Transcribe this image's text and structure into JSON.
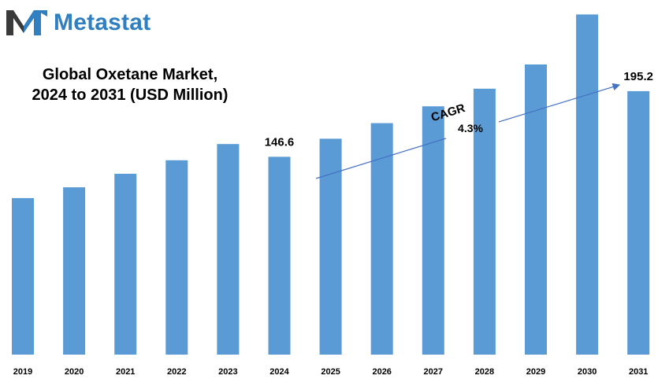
{
  "brand": {
    "name": "Metastat",
    "color": "#2f7fc1",
    "icon": "metastat-m-logo-icon"
  },
  "title_line1": "Global Oxetane Market,",
  "title_line2": "2024 to 2031 (USD Million)",
  "cagr": {
    "label": "CAGR",
    "value": "4.3%"
  },
  "chart_data": {
    "type": "bar",
    "title": "Global Oxetane Market, 2024 to 2031 (USD Million)",
    "categories": [
      "2019",
      "2020",
      "2021",
      "2022",
      "2023",
      "2024",
      "2025",
      "2026",
      "2027",
      "2028",
      "2029",
      "2030",
      "2031"
    ],
    "values": [
      116.0,
      124.0,
      134.0,
      144.0,
      156.0,
      146.6,
      160.0,
      171.5,
      184.0,
      197.0,
      215.0,
      252.0,
      195.2
    ],
    "data_labels": [
      {
        "category": "2024",
        "text": "146.6"
      },
      {
        "category": "2031",
        "text": "195.2"
      }
    ],
    "bar_color": "#5b9bd5",
    "arrow_color": "#4472c4",
    "xlabel": "",
    "ylabel": "",
    "grid": false,
    "legend": "none"
  }
}
